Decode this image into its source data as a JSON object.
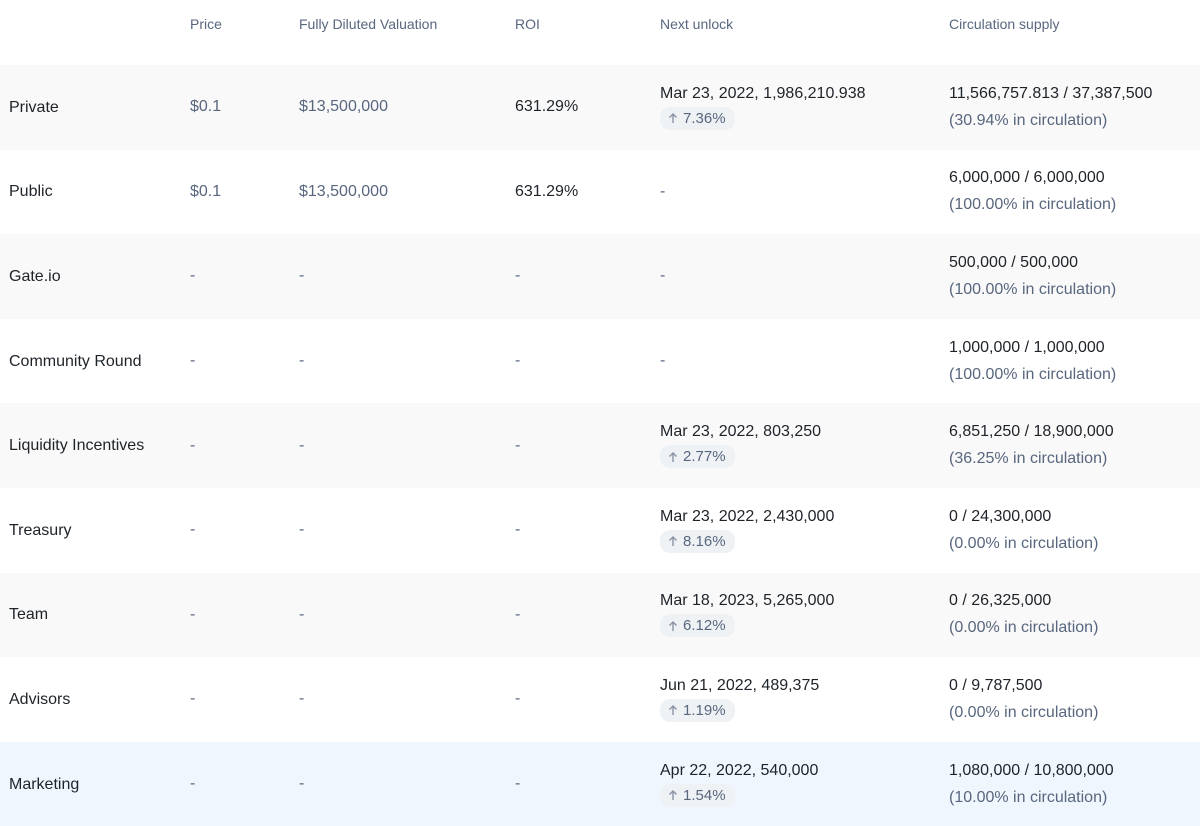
{
  "headers": {
    "price": "Price",
    "fdv": "Fully Diluted Valuation",
    "roi": "ROI",
    "next_unlock": "Next unlock",
    "circulation": "Circulation supply"
  },
  "rows": [
    {
      "name": "Private",
      "price": "$0.1",
      "fdv": "$13,500,000",
      "roi": "631.29%",
      "unlock": "Mar 23, 2022, 1,986,210.938",
      "unlock_pct": "7.36%",
      "supply": "11,566,757.813 / 37,387,500",
      "supply_pct": "(30.94% in circulation)"
    },
    {
      "name": "Public",
      "price": "$0.1",
      "fdv": "$13,500,000",
      "roi": "631.29%",
      "unlock": "-",
      "unlock_pct": null,
      "supply": "6,000,000 / 6,000,000",
      "supply_pct": "(100.00% in circulation)"
    },
    {
      "name": "Gate.io",
      "price": "-",
      "fdv": "-",
      "roi": "-",
      "unlock": "-",
      "unlock_pct": null,
      "supply": "500,000 / 500,000",
      "supply_pct": "(100.00% in circulation)"
    },
    {
      "name": "Community Round",
      "price": "-",
      "fdv": "-",
      "roi": "-",
      "unlock": "-",
      "unlock_pct": null,
      "supply": "1,000,000 / 1,000,000",
      "supply_pct": "(100.00% in circulation)"
    },
    {
      "name": "Liquidity Incentives",
      "price": "-",
      "fdv": "-",
      "roi": "-",
      "unlock": "Mar 23, 2022, 803,250",
      "unlock_pct": "2.77%",
      "supply": "6,851,250 / 18,900,000",
      "supply_pct": "(36.25% in circulation)"
    },
    {
      "name": "Treasury",
      "price": "-",
      "fdv": "-",
      "roi": "-",
      "unlock": "Mar 23, 2022, 2,430,000",
      "unlock_pct": "8.16%",
      "supply": "0 / 24,300,000",
      "supply_pct": "(0.00% in circulation)"
    },
    {
      "name": "Team",
      "price": "-",
      "fdv": "-",
      "roi": "-",
      "unlock": "Mar 18, 2023, 5,265,000",
      "unlock_pct": "6.12%",
      "supply": "0 / 26,325,000",
      "supply_pct": "(0.00% in circulation)"
    },
    {
      "name": "Advisors",
      "price": "-",
      "fdv": "-",
      "roi": "-",
      "unlock": "Jun 21, 2022, 489,375",
      "unlock_pct": "1.19%",
      "supply": "0 / 9,787,500",
      "supply_pct": "(0.00% in circulation)"
    },
    {
      "name": "Marketing",
      "price": "-",
      "fdv": "-",
      "roi": "-",
      "unlock": "Apr 22, 2022, 540,000",
      "unlock_pct": "1.54%",
      "supply": "1,080,000 / 10,800,000",
      "supply_pct": "(10.00% in circulation)"
    }
  ],
  "icons": {
    "unlock_change": "arrow-up-icon"
  }
}
